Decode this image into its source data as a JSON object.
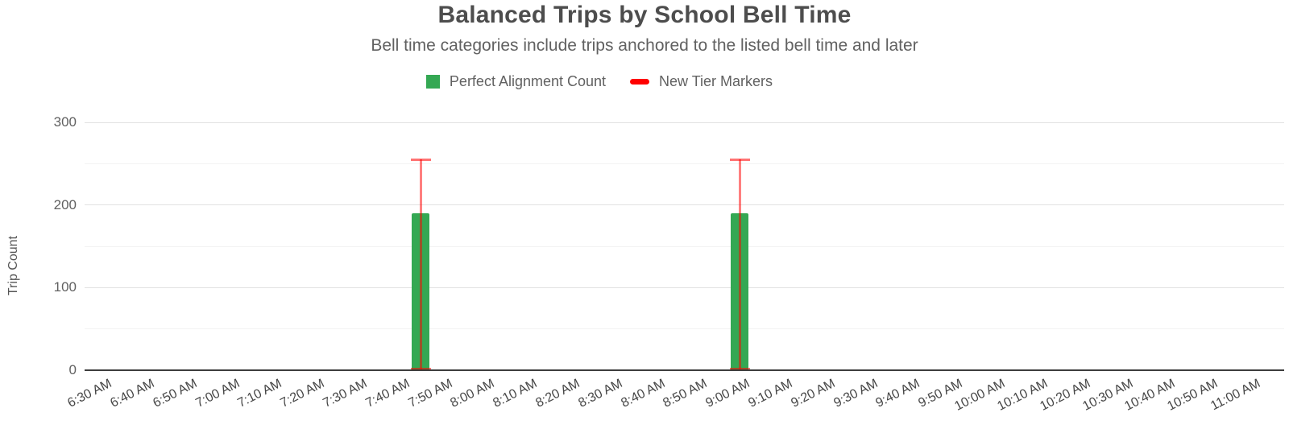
{
  "title": "Balanced Trips by School Bell Time",
  "subtitle": "Bell time categories include trips anchored to the listed bell time and later",
  "legend": {
    "items": [
      {
        "label": "Perfect Alignment Count",
        "swatch": "square",
        "color": "#34a853"
      },
      {
        "label": "New Tier Markers",
        "swatch": "dash",
        "color": "#ff0000"
      }
    ]
  },
  "chart_data": {
    "type": "bar",
    "title": "Balanced Trips by School Bell Time",
    "subtitle": "Bell time categories include trips anchored to the listed bell time and later",
    "xlabel": "",
    "ylabel": "Trip Count",
    "ylim": [
      0,
      300
    ],
    "y_major_ticks": [
      0,
      100,
      200,
      300
    ],
    "y_minor_gridlines": [
      50,
      150,
      250
    ],
    "grid": "horizontal-only",
    "legend_position": "top-center",
    "x_axis_type": "time-of-day",
    "x_tick_labels": [
      "6:30 AM",
      "6:40 AM",
      "6:50 AM",
      "7:00 AM",
      "7:10 AM",
      "7:20 AM",
      "7:30 AM",
      "7:40 AM",
      "7:50 AM",
      "8:00 AM",
      "8:10 AM",
      "8:20 AM",
      "8:30 AM",
      "8:40 AM",
      "8:50 AM",
      "9:00 AM",
      "9:10 AM",
      "9:20 AM",
      "9:30 AM",
      "9:40 AM",
      "9:50 AM",
      "10:00 AM",
      "10:10 AM",
      "10:20 AM",
      "10:30 AM",
      "10:40 AM",
      "10:50 AM",
      "11:00 AM"
    ],
    "series": [
      {
        "name": "Perfect Alignment Count",
        "kind": "bar",
        "color": "#34a853",
        "points": [
          {
            "x": "7:45 AM",
            "y": 190
          },
          {
            "x": "9:00 AM",
            "y": 190
          }
        ]
      },
      {
        "name": "New Tier Markers",
        "kind": "interval-marker",
        "color": "#ff0000",
        "points": [
          {
            "x": "7:45 AM",
            "y": 255,
            "low": 0
          },
          {
            "x": "9:00 AM",
            "y": 255,
            "low": 0
          }
        ]
      }
    ]
  }
}
